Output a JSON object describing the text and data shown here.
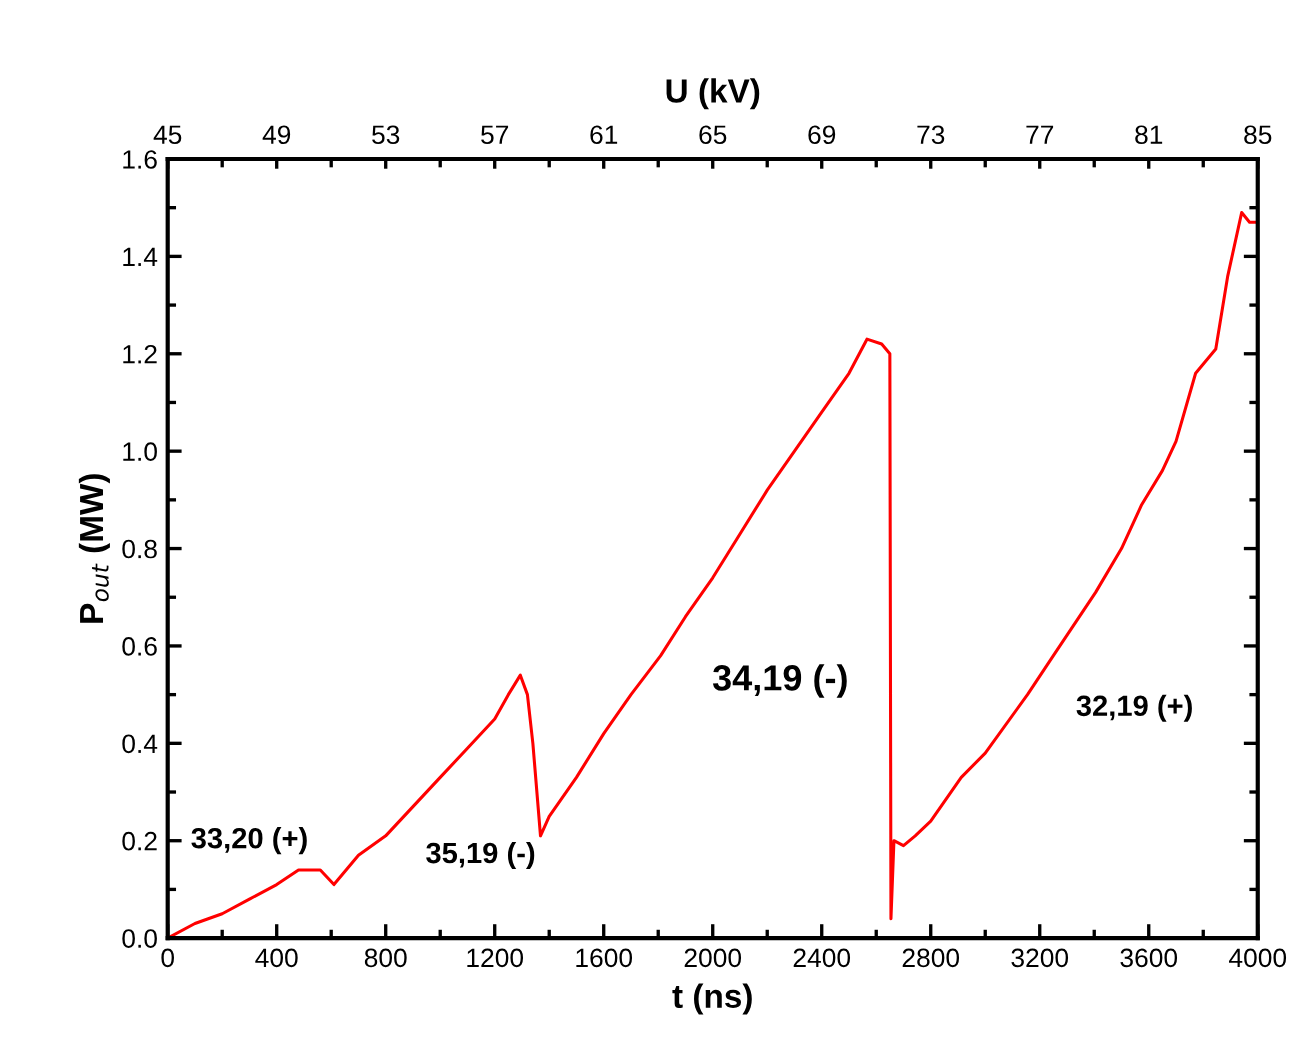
{
  "chart_data": {
    "type": "line",
    "xlabel": "t (ns)",
    "ylabel": "P$_{out}$ (MW)",
    "x2label": "U (kV)",
    "series": [
      {
        "color": "#ff0000",
        "x": [
          0,
          100,
          200,
          300,
          400,
          480,
          560,
          610,
          700,
          800,
          900,
          1000,
          1100,
          1200,
          1250,
          1294,
          1320,
          1340,
          1368,
          1400,
          1500,
          1600,
          1700,
          1809,
          1900,
          2000,
          2100,
          2200,
          2300,
          2400,
          2500,
          2566,
          2620,
          2650,
          2654,
          2665,
          2700,
          2743,
          2800,
          2912,
          3000,
          3155,
          3250,
          3405,
          3500,
          3574,
          3650,
          3700,
          3772,
          3846,
          3890,
          3941,
          3970,
          4000
        ],
        "values": [
          0,
          0.03,
          0.05,
          0.08,
          0.11,
          0.14,
          0.14,
          0.11,
          0.17,
          0.21,
          0.27,
          0.33,
          0.39,
          0.45,
          0.5,
          0.54,
          0.5,
          0.4,
          0.21,
          0.25,
          0.33,
          0.42,
          0.5,
          0.58,
          0.66,
          0.74,
          0.83,
          0.92,
          1.0,
          1.08,
          1.16,
          1.23,
          1.22,
          1.2,
          0.04,
          0.2,
          0.19,
          0.21,
          0.24,
          0.33,
          0.38,
          0.5,
          0.58,
          0.71,
          0.8,
          0.89,
          0.96,
          1.02,
          1.16,
          1.21,
          1.36,
          1.49,
          1.47,
          1.47
        ]
      }
    ],
    "xlim": [
      0,
      4000
    ],
    "xticks": [
      0,
      400,
      800,
      1200,
      1600,
      2000,
      2400,
      2800,
      3200,
      3600,
      4000
    ],
    "x2lim": [
      45,
      85
    ],
    "x2ticks": [
      45,
      49,
      53,
      57,
      61,
      65,
      69,
      73,
      77,
      81,
      85
    ],
    "ylim": [
      0,
      1.6
    ],
    "yticks": [
      {
        "value": 0,
        "label": "0.0"
      },
      0.2,
      0.4,
      0.6,
      0.8,
      {
        "value": 1,
        "label": "1.0"
      },
      1.2,
      1.4,
      1.6
    ],
    "grid": false,
    "legend": false,
    "line_style": "solid",
    "marker": "none",
    "annotations": [
      "33,20 (+)",
      "35,19 (-)",
      "34,19 (-)",
      "32,19 (+)"
    ]
  }
}
